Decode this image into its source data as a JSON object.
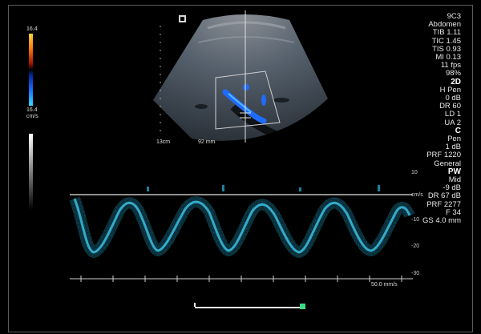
{
  "mode_label": "9C3",
  "preset": "Abdomen",
  "safety": [
    "TIB 1.11",
    "TIC 1.45",
    "TIS 0.93",
    "MI 0.13",
    "11 fps",
    "98%"
  ],
  "section_2d": {
    "title": "2D",
    "items": [
      "H Pen",
      "0 dB",
      "DR 60",
      "LD 1",
      "UA 2"
    ]
  },
  "section_c": {
    "title": "C",
    "items": [
      "Pen",
      "1 dB",
      "PRF 1220",
      "General"
    ]
  },
  "section_pw": {
    "title": "PW",
    "items": [
      "Mid",
      "-9 dB",
      "DR 67 dB",
      "PRF 2277",
      "F 34",
      "GS 4.0 mm"
    ]
  },
  "color_bar": {
    "top_value": "16.4",
    "bottom_value": "16.4",
    "unit": "cm/s"
  },
  "depth_label": "13cm",
  "image_label": "92 mm",
  "spectral": {
    "unit": "cm/s",
    "sweep_speed": "50.0 mm/s",
    "scale_ticks": [
      "10",
      "0",
      "-10",
      "-20",
      "-30"
    ]
  },
  "colors": {
    "doppler": "#2ab8e0",
    "flow": "#1e6cff",
    "progress": "#3ddc84"
  }
}
